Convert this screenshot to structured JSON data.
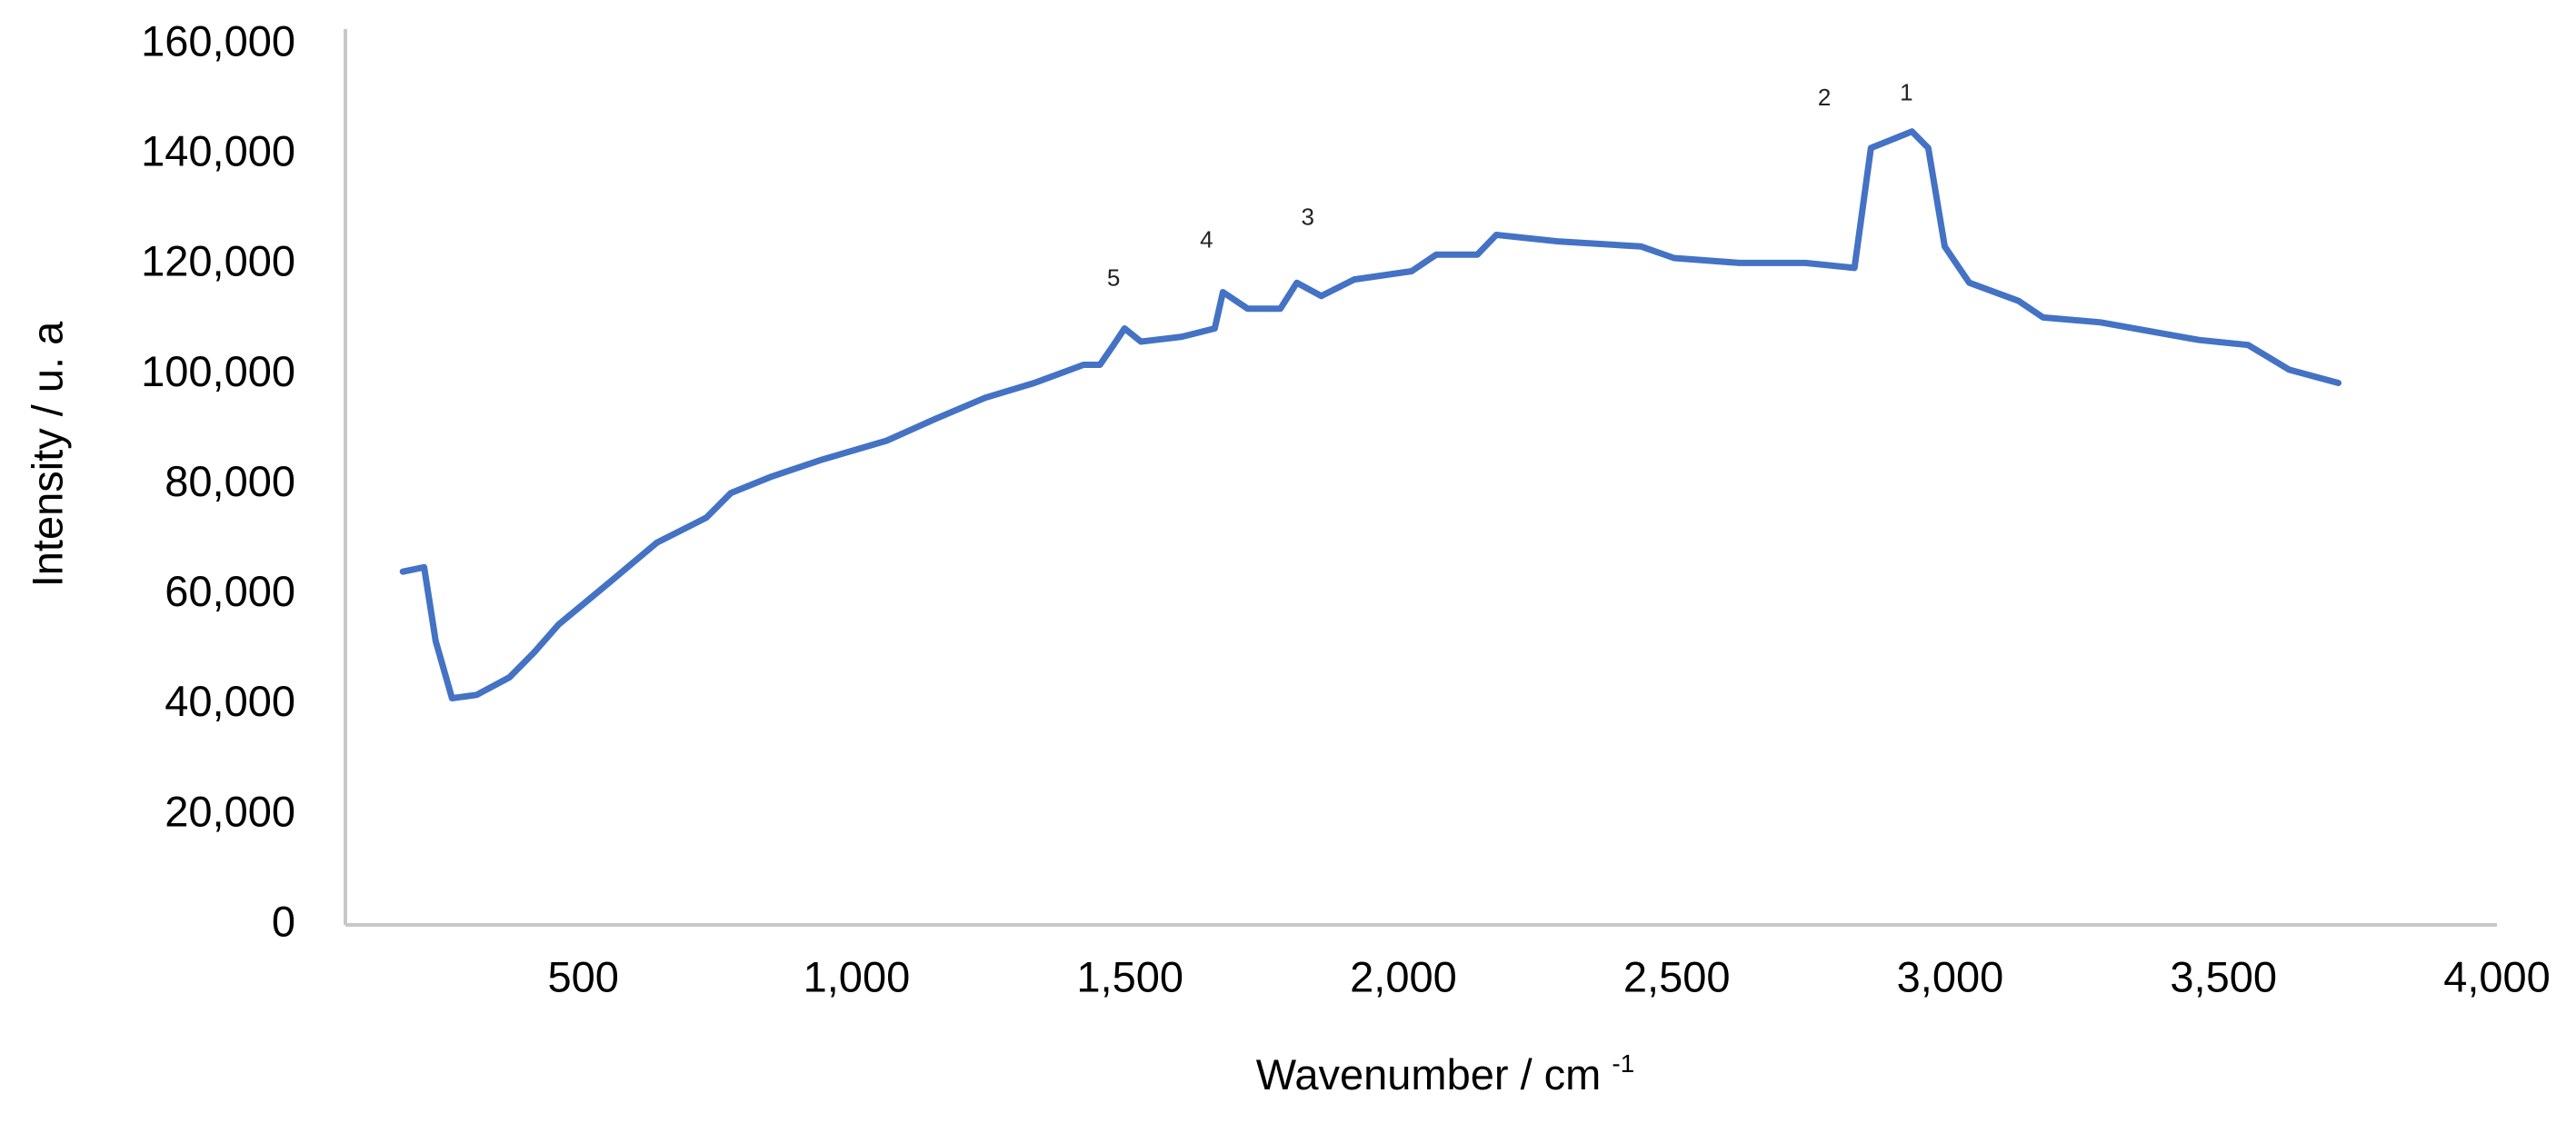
{
  "chart_data": {
    "type": "line",
    "xlabel": "Wavenumber / cm",
    "xlabel_superscript": "-1",
    "ylabel": "Intensity / u. a",
    "xlim": [
      65,
      4000
    ],
    "xticks": [
      {
        "value": 500,
        "label": "500"
      },
      {
        "value": 1000,
        "label": "1,000"
      },
      {
        "value": 1500,
        "label": "1,500"
      },
      {
        "value": 2000,
        "label": "2,000"
      },
      {
        "value": 2500,
        "label": "2,500"
      },
      {
        "value": 3000,
        "label": "3,000"
      },
      {
        "value": 3500,
        "label": "3,500"
      },
      {
        "value": 4000,
        "label": "4,000"
      }
    ],
    "ylim": [
      0,
      160000
    ],
    "yticks": [
      0,
      {
        "value": 20000,
        "label": "20,000"
      },
      {
        "value": 40000,
        "label": "40,000"
      },
      {
        "value": 60000,
        "label": "60,000"
      },
      {
        "value": 80000,
        "label": "80,000"
      },
      {
        "value": 100000,
        "label": "100,000"
      },
      {
        "value": 120000,
        "label": "120,000"
      },
      {
        "value": 140000,
        "label": "140,000"
      },
      {
        "value": 160000,
        "label": "160,000"
      }
    ],
    "grid": false,
    "x": [
      170,
      209,
      230,
      260,
      305,
      365,
      410,
      455,
      545,
      635,
      725,
      770,
      845,
      935,
      1055,
      1145,
      1235,
      1325,
      1415,
      1445,
      1470,
      1490,
      1520,
      1595,
      1655,
      1670,
      1715,
      1775,
      1805,
      1850,
      1910,
      2015,
      2060,
      2135,
      2170,
      2285,
      2435,
      2495,
      2615,
      2735,
      2825,
      2855,
      2930,
      2960,
      2990,
      3035,
      3125,
      3170,
      3275,
      3455,
      3545,
      3620,
      3710
    ],
    "series": [
      {
        "color": "#4472c4",
        "values": [
          64200,
          65000,
          51600,
          41200,
          41800,
          45000,
          49500,
          54600,
          62000,
          69500,
          74000,
          78500,
          81500,
          84500,
          88000,
          92000,
          95800,
          98500,
          101800,
          101800,
          105400,
          108400,
          106000,
          106900,
          108400,
          115000,
          112000,
          112000,
          116700,
          114300,
          117300,
          118800,
          121800,
          121800,
          125400,
          124200,
          123300,
          121200,
          120300,
          120300,
          119400,
          141200,
          144200,
          141200,
          123300,
          116700,
          113400,
          110400,
          109500,
          106300,
          105400,
          100900,
          98500
        ]
      }
    ],
    "annotations": [
      {
        "text": "1",
        "x": 2920,
        "y": 151000
      },
      {
        "text": "2",
        "x": 2770,
        "y": 150100
      },
      {
        "text": "3",
        "x": 1825,
        "y": 128400
      },
      {
        "text": "4",
        "x": 1640,
        "y": 124200
      },
      {
        "text": "5",
        "x": 1470,
        "y": 117300
      }
    ]
  }
}
